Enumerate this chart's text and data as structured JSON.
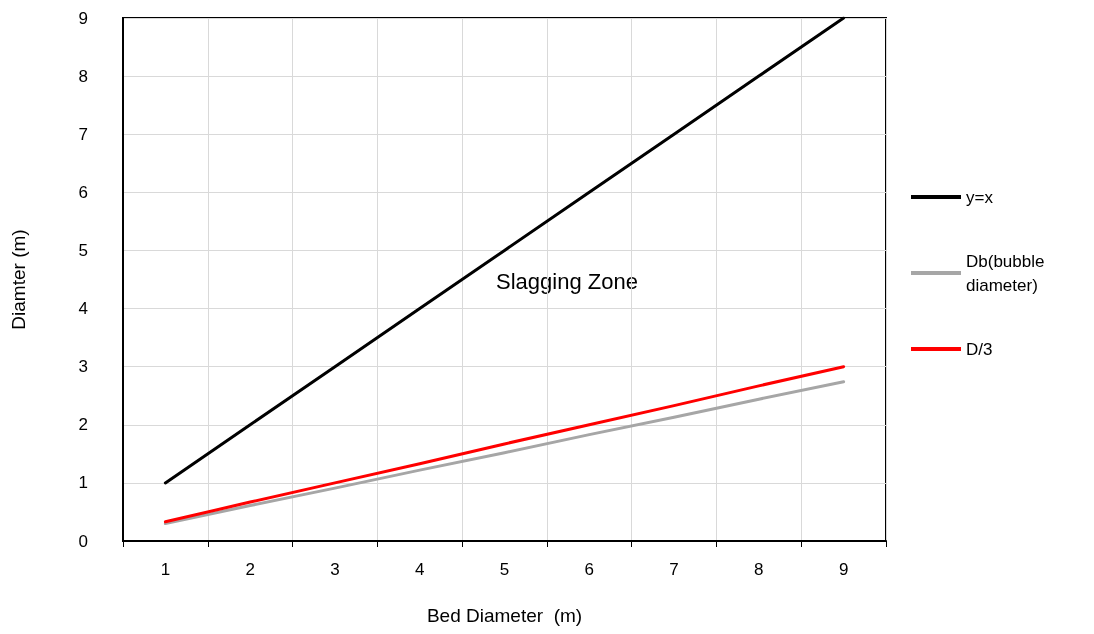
{
  "chart_data": {
    "type": "line",
    "xlabel": "Bed Diameter  (m)",
    "ylabel": "Diamter (m)",
    "categories": [
      "1",
      "2",
      "3",
      "4",
      "5",
      "6",
      "7",
      "8",
      "9"
    ],
    "series": [
      {
        "name": "y=x",
        "color": "#000000",
        "values": [
          1,
          2,
          3,
          4,
          5,
          6,
          7,
          8,
          9
        ]
      },
      {
        "name": "Db(bubble diameter)",
        "color": "#a6a6a6",
        "values": [
          0.3,
          0.61,
          0.91,
          1.22,
          1.52,
          1.83,
          2.13,
          2.44,
          2.74
        ]
      },
      {
        "name": "D/3",
        "color": "#ff0000",
        "values": [
          0.33,
          0.67,
          1,
          1.33,
          1.67,
          2,
          2.33,
          2.67,
          3
        ]
      }
    ],
    "ylim": [
      0,
      9
    ],
    "yticks": [
      0,
      1,
      2,
      3,
      4,
      5,
      6,
      7,
      8,
      9
    ],
    "annotations": [
      "Slagging Zone"
    ],
    "grid": true,
    "legend": "right",
    "marker": "none",
    "line_style": "solid"
  }
}
